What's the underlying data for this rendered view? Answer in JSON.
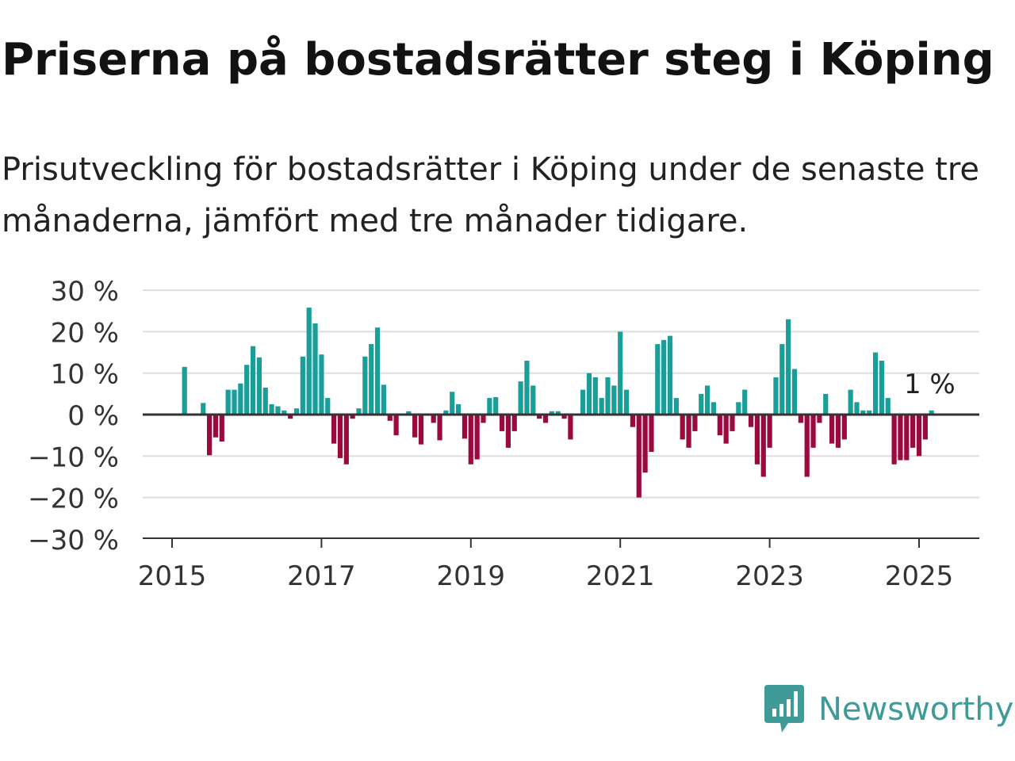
{
  "header": {
    "title": "Priserna på bostadsrätter steg i Köping",
    "subtitle": "Prisutveckling för bostadsrätter i Köping under de senaste tre månaderna, jämfört med tre månader tidigare."
  },
  "chart_data": {
    "type": "bar",
    "y_tick_labels": [
      "30 %",
      "20 %",
      "10 %",
      "0 %",
      "−10 %",
      "−20 %",
      "−30 %"
    ],
    "y_ticks": [
      30,
      20,
      10,
      0,
      -10,
      -20,
      -30
    ],
    "ylim": [
      -30,
      30
    ],
    "x_tick_labels": [
      "2015",
      "2017",
      "2019",
      "2021",
      "2023",
      "2025"
    ],
    "x_start": "2015-01",
    "x_end": "2025-12",
    "series": [
      {
        "values": [
          {
            "month": "2015-03",
            "value": 11.5
          },
          {
            "month": "2015-06",
            "value": 2.8
          },
          {
            "month": "2015-07",
            "value": -9.8
          },
          {
            "month": "2015-08",
            "value": -5.5
          },
          {
            "month": "2015-09",
            "value": -6.5
          },
          {
            "month": "2015-10",
            "value": 6.0
          },
          {
            "month": "2015-11",
            "value": 6.0
          },
          {
            "month": "2015-12",
            "value": 7.5
          },
          {
            "month": "2016-01",
            "value": 12.0
          },
          {
            "month": "2016-02",
            "value": 16.5
          },
          {
            "month": "2016-03",
            "value": 13.8
          },
          {
            "month": "2016-04",
            "value": 6.5
          },
          {
            "month": "2016-05",
            "value": 2.5
          },
          {
            "month": "2016-06",
            "value": 2.0
          },
          {
            "month": "2016-07",
            "value": 1.0
          },
          {
            "month": "2016-08",
            "value": -1.0
          },
          {
            "month": "2016-09",
            "value": 1.5
          },
          {
            "month": "2016-10",
            "value": 14.0
          },
          {
            "month": "2016-11",
            "value": 25.8
          },
          {
            "month": "2016-12",
            "value": 22.0
          },
          {
            "month": "2017-01",
            "value": 14.5
          },
          {
            "month": "2017-02",
            "value": 4.0
          },
          {
            "month": "2017-03",
            "value": -7.0
          },
          {
            "month": "2017-04",
            "value": -10.5
          },
          {
            "month": "2017-05",
            "value": -12.0
          },
          {
            "month": "2017-06",
            "value": -1.0
          },
          {
            "month": "2017-07",
            "value": 1.5
          },
          {
            "month": "2017-08",
            "value": 14.0
          },
          {
            "month": "2017-09",
            "value": 17.0
          },
          {
            "month": "2017-10",
            "value": 21.0
          },
          {
            "month": "2017-11",
            "value": 7.2
          },
          {
            "month": "2017-12",
            "value": -1.5
          },
          {
            "month": "2018-01",
            "value": -5.0
          },
          {
            "month": "2018-03",
            "value": 0.8
          },
          {
            "month": "2018-04",
            "value": -5.5
          },
          {
            "month": "2018-05",
            "value": -7.2
          },
          {
            "month": "2018-07",
            "value": -2.0
          },
          {
            "month": "2018-08",
            "value": -6.2
          },
          {
            "month": "2018-09",
            "value": 1.0
          },
          {
            "month": "2018-10",
            "value": 5.5
          },
          {
            "month": "2018-11",
            "value": 2.5
          },
          {
            "month": "2018-12",
            "value": -5.8
          },
          {
            "month": "2019-01",
            "value": -12.0
          },
          {
            "month": "2019-02",
            "value": -10.8
          },
          {
            "month": "2019-03",
            "value": -2.0
          },
          {
            "month": "2019-04",
            "value": 4.0
          },
          {
            "month": "2019-05",
            "value": 4.2
          },
          {
            "month": "2019-06",
            "value": -4.0
          },
          {
            "month": "2019-07",
            "value": -8.0
          },
          {
            "month": "2019-08",
            "value": -4.0
          },
          {
            "month": "2019-09",
            "value": 8.0
          },
          {
            "month": "2019-10",
            "value": 13.0
          },
          {
            "month": "2019-11",
            "value": 7.0
          },
          {
            "month": "2019-12",
            "value": -1.0
          },
          {
            "month": "2020-01",
            "value": -2.0
          },
          {
            "month": "2020-02",
            "value": 0.8
          },
          {
            "month": "2020-03",
            "value": 0.8
          },
          {
            "month": "2020-04",
            "value": -1.0
          },
          {
            "month": "2020-05",
            "value": -6.0
          },
          {
            "month": "2020-07",
            "value": 6.0
          },
          {
            "month": "2020-08",
            "value": 10.0
          },
          {
            "month": "2020-09",
            "value": 9.0
          },
          {
            "month": "2020-10",
            "value": 4.0
          },
          {
            "month": "2020-11",
            "value": 9.0
          },
          {
            "month": "2020-12",
            "value": 7.0
          },
          {
            "month": "2021-01",
            "value": 20.0
          },
          {
            "month": "2021-02",
            "value": 6.0
          },
          {
            "month": "2021-03",
            "value": -3.0
          },
          {
            "month": "2021-04",
            "value": -20.0
          },
          {
            "month": "2021-05",
            "value": -14.0
          },
          {
            "month": "2021-06",
            "value": -9.0
          },
          {
            "month": "2021-07",
            "value": 17.0
          },
          {
            "month": "2021-08",
            "value": 18.0
          },
          {
            "month": "2021-09",
            "value": 19.0
          },
          {
            "month": "2021-10",
            "value": 4.0
          },
          {
            "month": "2021-11",
            "value": -6.0
          },
          {
            "month": "2021-12",
            "value": -8.0
          },
          {
            "month": "2022-01",
            "value": -4.0
          },
          {
            "month": "2022-02",
            "value": 5.0
          },
          {
            "month": "2022-03",
            "value": 7.0
          },
          {
            "month": "2022-04",
            "value": 3.0
          },
          {
            "month": "2022-05",
            "value": -5.0
          },
          {
            "month": "2022-06",
            "value": -7.0
          },
          {
            "month": "2022-07",
            "value": -4.0
          },
          {
            "month": "2022-08",
            "value": 3.0
          },
          {
            "month": "2022-09",
            "value": 6.0
          },
          {
            "month": "2022-10",
            "value": -3.0
          },
          {
            "month": "2022-11",
            "value": -12.0
          },
          {
            "month": "2022-12",
            "value": -15.0
          },
          {
            "month": "2023-01",
            "value": -8.0
          },
          {
            "month": "2023-02",
            "value": 9.0
          },
          {
            "month": "2023-03",
            "value": 17.0
          },
          {
            "month": "2023-04",
            "value": 23.0
          },
          {
            "month": "2023-05",
            "value": 11.0
          },
          {
            "month": "2023-06",
            "value": -2.0
          },
          {
            "month": "2023-07",
            "value": -15.0
          },
          {
            "month": "2023-08",
            "value": -8.0
          },
          {
            "month": "2023-09",
            "value": -2.0
          },
          {
            "month": "2023-10",
            "value": 5.0
          },
          {
            "month": "2023-11",
            "value": -7.0
          },
          {
            "month": "2023-12",
            "value": -8.0
          },
          {
            "month": "2024-01",
            "value": -6.0
          },
          {
            "month": "2024-02",
            "value": 6.0
          },
          {
            "month": "2024-03",
            "value": 3.0
          },
          {
            "month": "2024-04",
            "value": 1.0
          },
          {
            "month": "2024-05",
            "value": 1.0
          },
          {
            "month": "2024-06",
            "value": 15.0
          },
          {
            "month": "2024-07",
            "value": 13.0
          },
          {
            "month": "2024-08",
            "value": 4.0
          },
          {
            "month": "2024-09",
            "value": -12.0
          },
          {
            "month": "2024-10",
            "value": -11.0
          },
          {
            "month": "2024-11",
            "value": -11.0
          },
          {
            "month": "2024-12",
            "value": -8.0
          },
          {
            "month": "2025-01",
            "value": -10.0
          },
          {
            "month": "2025-02",
            "value": -6.0
          },
          {
            "month": "2025-03",
            "value": 1.0
          }
        ]
      }
    ],
    "annotation": {
      "month": "2025-03",
      "label": "1 %"
    },
    "grid": true,
    "colors": {
      "positive": "#1a9e99",
      "negative": "#9b0a3f",
      "grid": "#dddddd",
      "axis": "#333333",
      "text": "#333333"
    }
  },
  "branding": {
    "logo_text": "Newsworthy",
    "logo_icon": "newsworthy-chart-icon",
    "color": "#3e9b97"
  }
}
